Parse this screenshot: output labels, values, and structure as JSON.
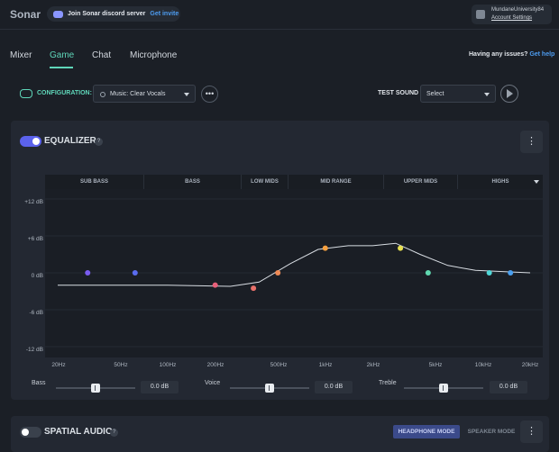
{
  "app": {
    "title": "Sonar"
  },
  "discord": {
    "text": "Join Sonar discord server",
    "link": "Get invite"
  },
  "account": {
    "username": "MundaneUniversity84",
    "settings": "Account Settings"
  },
  "tabs": [
    {
      "label": "Mixer",
      "active": false
    },
    {
      "label": "Game",
      "active": true
    },
    {
      "label": "Chat",
      "active": false
    },
    {
      "label": "Microphone",
      "active": false
    }
  ],
  "help": {
    "question": "Having any issues?",
    "link": "Get help"
  },
  "config": {
    "label": "CONFIGURATION:",
    "selected": "Music: Clear Vocals",
    "more": "•••",
    "test_sound_label": "TEST SOUND",
    "test_sound_selected": "Select"
  },
  "equalizer": {
    "title": "EQUALIZER",
    "help": "?",
    "menu": "⋮",
    "enabled": true,
    "bands": [
      "SUB BASS",
      "BASS",
      "LOW MIDS",
      "MID RANGE",
      "UPPER MIDS",
      "HIGHS"
    ],
    "y_ticks": [
      "+12 dB",
      "+6 dB",
      "0 dB",
      "-6 dB",
      "-12 dB"
    ],
    "x_ticks": [
      "20Hz",
      "50Hz",
      "100Hz",
      "200Hz",
      "500Hz",
      "1kHz",
      "2kHz",
      "5kHz",
      "10kHz",
      "20kHz"
    ],
    "points": [
      {
        "hz": 31,
        "db": 0,
        "color": "#7a5cf0"
      },
      {
        "hz": 62,
        "db": 0,
        "color": "#5a6cf0"
      },
      {
        "hz": 200,
        "db": -2,
        "color": "#e8607a"
      },
      {
        "hz": 350,
        "db": -2.5,
        "color": "#e8706a"
      },
      {
        "hz": 500,
        "db": 0,
        "color": "#f08a55"
      },
      {
        "hz": 1000,
        "db": 4,
        "color": "#f5a040"
      },
      {
        "hz": 3000,
        "db": 4,
        "color": "#e8e050"
      },
      {
        "hz": 4500,
        "db": 0,
        "color": "#60d8b0"
      },
      {
        "hz": 11000,
        "db": 0,
        "color": "#50d8d8"
      },
      {
        "hz": 15000,
        "db": 0,
        "color": "#4aa0f0"
      }
    ],
    "curve": [
      {
        "hz": 20,
        "db": -2
      },
      {
        "hz": 100,
        "db": -2
      },
      {
        "hz": 250,
        "db": -2.2
      },
      {
        "hz": 380,
        "db": -1.5
      },
      {
        "hz": 600,
        "db": 1.5
      },
      {
        "hz": 900,
        "db": 3.8
      },
      {
        "hz": 1400,
        "db": 4.4
      },
      {
        "hz": 2000,
        "db": 4.4
      },
      {
        "hz": 2800,
        "db": 4.8
      },
      {
        "hz": 4000,
        "db": 3
      },
      {
        "hz": 6000,
        "db": 1.2
      },
      {
        "hz": 9000,
        "db": 0.4
      },
      {
        "hz": 20000,
        "db": 0
      }
    ]
  },
  "sliders": [
    {
      "label": "Bass",
      "value": "0.0 dB"
    },
    {
      "label": "Voice",
      "value": "0.0 dB"
    },
    {
      "label": "Treble",
      "value": "0.0 dB"
    }
  ],
  "spatial": {
    "title": "SPATIAL AUDIO",
    "help": "?",
    "menu": "⋮",
    "enabled": false,
    "mode_a": "HEADPHONE MODE",
    "mode_b": "SPEAKER MODE"
  }
}
